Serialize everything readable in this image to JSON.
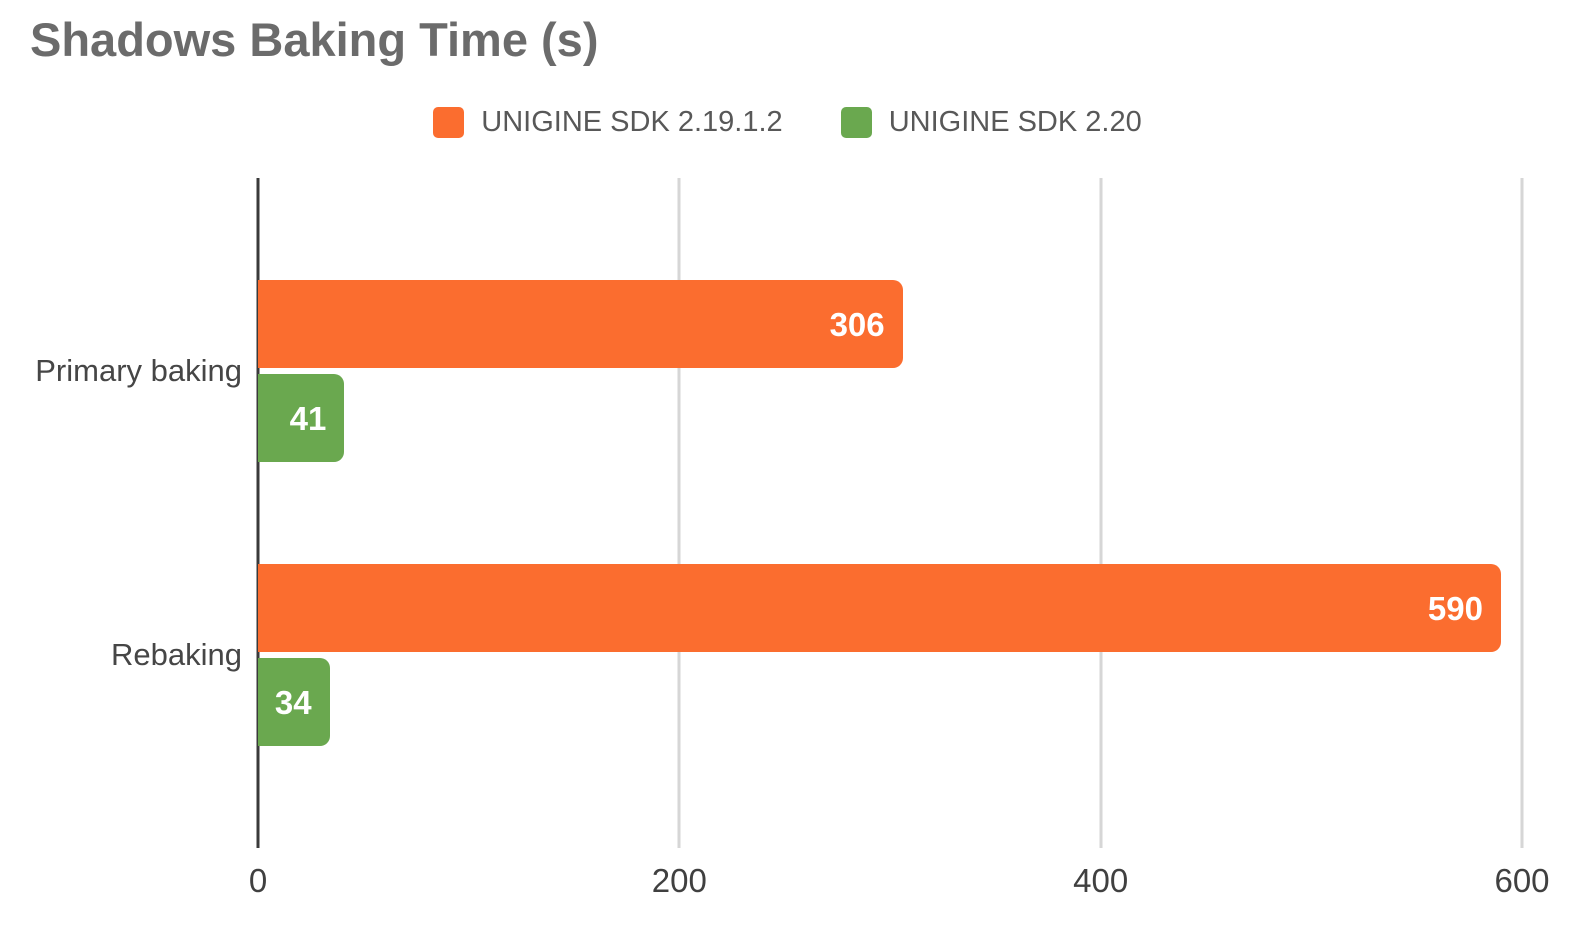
{
  "chart_data": {
    "type": "bar",
    "orientation": "horizontal",
    "title": "Shadows Baking Time (s)",
    "categories": [
      "Primary baking",
      "Rebaking"
    ],
    "series": [
      {
        "name": "UNIGINE SDK 2.19.1.2",
        "color": "#FB6D2F",
        "values": [
          306,
          590
        ]
      },
      {
        "name": "UNIGINE SDK 2.20",
        "color": "#6AA84F",
        "values": [
          41,
          34
        ]
      }
    ],
    "xlabel": "",
    "ylabel": "",
    "xlim": [
      0,
      600
    ],
    "xticks": [
      0,
      200,
      400,
      600
    ],
    "grid": "vertical",
    "legend_position": "top",
    "value_labels": "inside-end",
    "colors": {
      "title_text": "#6b6b6b",
      "legend_text": "#585858",
      "category_text": "#464646",
      "tick_text": "#404040",
      "axis_line": "#3a3a3a",
      "gridline": "#d6d6d6",
      "value_label_text": "#ffffff",
      "background": "#ffffff"
    }
  }
}
